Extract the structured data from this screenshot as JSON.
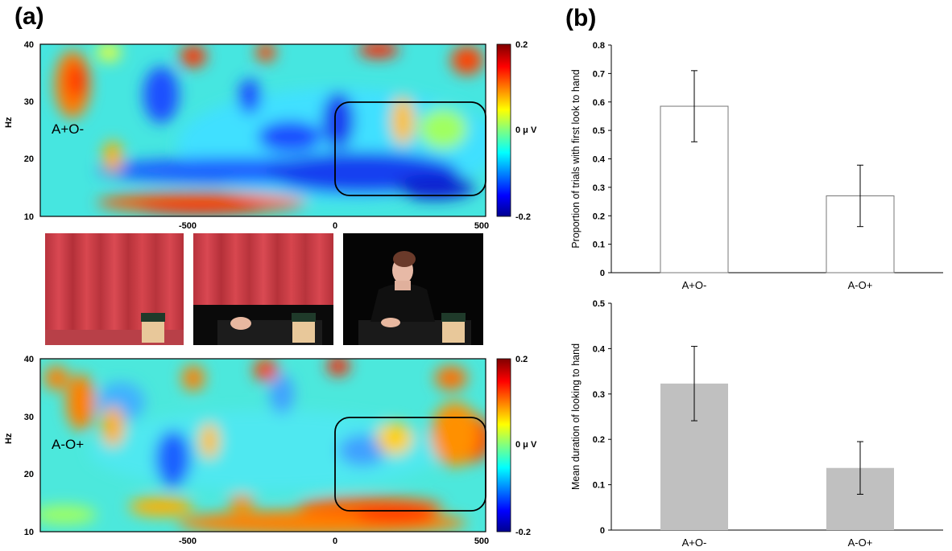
{
  "panels": {
    "a": "(a)",
    "b": "(b)"
  },
  "spectrograms": [
    {
      "condition": "A+O-",
      "ylabel": "Hz",
      "yticks": [
        "40",
        "30",
        "20",
        "10"
      ],
      "xticks": [
        "-500",
        "0",
        "500"
      ],
      "colorbar_ticks": [
        "0.2",
        "0 μ V",
        "-0.2"
      ]
    },
    {
      "condition": "A-O+",
      "ylabel": "Hz",
      "yticks": [
        "40",
        "30",
        "20",
        "10"
      ],
      "xticks": [
        "-500",
        "0",
        "500"
      ],
      "colorbar_ticks": [
        "0.2",
        "0 μ V",
        "-0.2"
      ]
    }
  ],
  "chart_data": [
    {
      "type": "heatmap",
      "condition": "A+O-",
      "ylabel": "Hz",
      "xlim": [
        -1000,
        500
      ],
      "ylim": [
        10,
        40
      ],
      "colorbar": {
        "min": -0.2,
        "max": 0.2,
        "unit": "μ V"
      },
      "highlight_box": {
        "x": [
          0,
          500
        ],
        "y": [
          14,
          30
        ]
      }
    },
    {
      "type": "bar",
      "ylabel": "Proportion of trials with first look to hand",
      "categories": [
        "A+O-",
        "A-O+"
      ],
      "values": [
        0.585,
        0.27
      ],
      "errors": [
        0.125,
        0.108
      ],
      "ylim": [
        0,
        0.8
      ],
      "yticks": [
        "0",
        "0.1",
        "0.2",
        "0.3",
        "0.4",
        "0.5",
        "0.6",
        "0.7",
        "0.8"
      ],
      "bar_color": "#ffffff"
    },
    {
      "type": "heatmap",
      "condition": "A-O+",
      "ylabel": "Hz",
      "xlim": [
        -1000,
        500
      ],
      "ylim": [
        10,
        40
      ],
      "colorbar": {
        "min": -0.2,
        "max": 0.2,
        "unit": "μ V"
      },
      "highlight_box": {
        "x": [
          0,
          500
        ],
        "y": [
          14,
          30
        ]
      }
    },
    {
      "type": "bar",
      "ylabel": "Mean duration of looking to hand",
      "categories": [
        "A+O-",
        "A-O+"
      ],
      "values": [
        0.323,
        0.137
      ],
      "errors": [
        0.082,
        0.058
      ],
      "ylim": [
        0,
        0.5
      ],
      "yticks": [
        "0",
        "0.1",
        "0.2",
        "0.3",
        "0.4",
        "0.5"
      ],
      "bar_color": "#c0c0c0"
    }
  ],
  "colors": {
    "bar_grey": "#c0c0c0",
    "frame": "#000000"
  }
}
